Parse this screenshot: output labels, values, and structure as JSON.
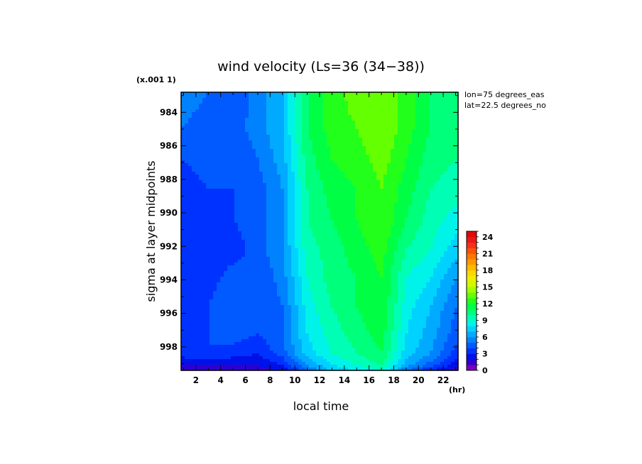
{
  "chart_data": {
    "type": "heatmap",
    "title": "wind velocity (Ls=36 (34−38))",
    "xlabel": "local time",
    "ylabel": "sigma at layer midpoints",
    "x_unit": "(hr)",
    "y_scale_note": "(x.001 1)",
    "annotations": [
      "lon=75 degrees_eas",
      "lat=22.5 degrees_no"
    ],
    "xlim": [
      0.8,
      23.2
    ],
    "ylim": [
      999.4,
      982.8
    ],
    "x_ticks": [
      2,
      4,
      6,
      8,
      10,
      12,
      14,
      16,
      18,
      20,
      22
    ],
    "y_ticks": [
      984,
      986,
      988,
      990,
      992,
      994,
      996,
      998
    ],
    "x": [
      1,
      3,
      5,
      7,
      9,
      11,
      13,
      15,
      17,
      19,
      21,
      23
    ],
    "y": [
      982.8,
      984.9,
      986.8,
      988.6,
      990.4,
      992.2,
      993.9,
      995.6,
      997.2,
      998.4,
      999.1,
      999.4
    ],
    "z": [
      [
        5.5,
        5.0,
        4.0,
        5.5,
        7.0,
        11.0,
        12.5,
        13.5,
        14.0,
        12.5,
        11.0,
        10.0
      ],
      [
        5.0,
        4.5,
        4.5,
        5.5,
        7.0,
        11.0,
        12.5,
        13.0,
        14.0,
        12.5,
        11.0,
        10.0
      ],
      [
        4.0,
        4.5,
        4.0,
        5.0,
        6.5,
        10.5,
        12.0,
        12.5,
        13.5,
        12.0,
        10.5,
        10.0
      ],
      [
        3.5,
        4.0,
        4.0,
        4.5,
        6.0,
        10.0,
        11.5,
        12.0,
        13.0,
        11.5,
        10.0,
        9.5
      ],
      [
        3.0,
        3.5,
        4.0,
        4.5,
        6.0,
        10.0,
        11.0,
        12.0,
        13.0,
        11.0,
        9.5,
        8.5
      ],
      [
        3.0,
        3.5,
        3.5,
        4.5,
        6.0,
        9.5,
        10.5,
        11.5,
        12.5,
        10.0,
        9.0,
        7.5
      ],
      [
        3.0,
        3.5,
        4.5,
        4.0,
        5.5,
        9.0,
        10.5,
        11.0,
        12.0,
        9.0,
        8.0,
        6.0
      ],
      [
        3.0,
        4.0,
        5.0,
        4.0,
        5.0,
        8.5,
        10.0,
        11.0,
        12.0,
        8.5,
        7.0,
        5.0
      ],
      [
        3.5,
        4.0,
        4.5,
        4.0,
        5.0,
        8.0,
        9.5,
        10.5,
        11.5,
        8.0,
        6.5,
        4.5
      ],
      [
        3.5,
        4.0,
        3.5,
        3.0,
        4.5,
        7.5,
        9.0,
        10.0,
        11.0,
        7.5,
        6.0,
        3.5
      ],
      [
        2.0,
        2.0,
        2.0,
        2.0,
        3.0,
        6.0,
        8.0,
        9.0,
        10.0,
        6.5,
        4.5,
        2.5
      ],
      [
        1.5,
        1.5,
        1.5,
        1.5,
        2.0,
        5.0,
        7.0,
        8.0,
        9.0,
        5.0,
        3.0,
        1.5
      ]
    ],
    "colorbar": {
      "range": [
        0,
        25
      ],
      "tick_labels": [
        "0",
        "3",
        "6",
        "9",
        "12",
        "15",
        "18",
        "21",
        "24"
      ],
      "tick_values": [
        0,
        3,
        6,
        9,
        12,
        15,
        18,
        21,
        24
      ]
    },
    "grid": false
  }
}
